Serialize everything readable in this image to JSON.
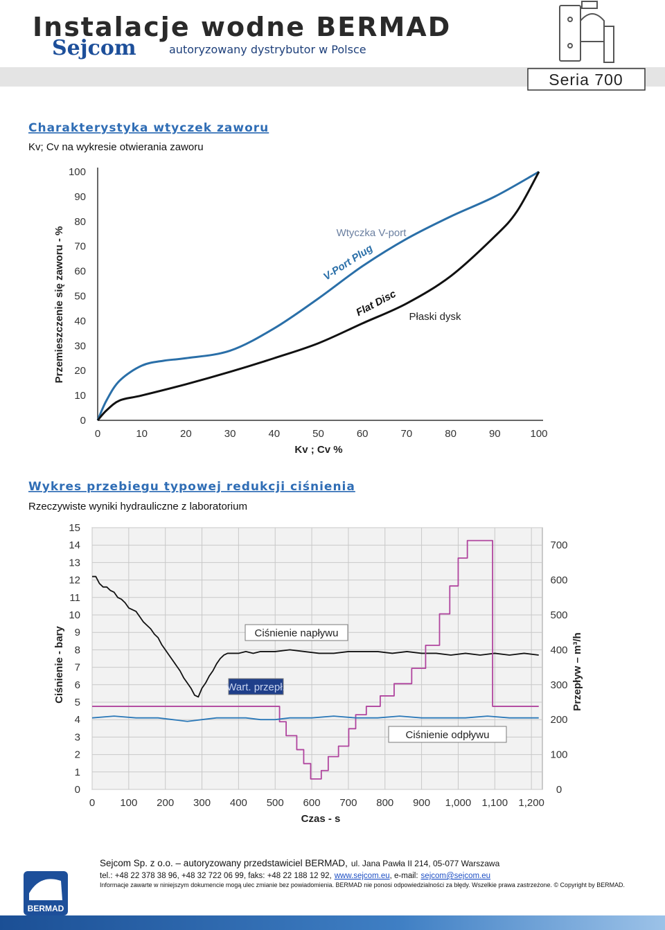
{
  "header": {
    "title": "Instalacje wodne BERMAD",
    "brand": "Sejcom",
    "tagline": "autoryzowany dystrybutor w Polsce",
    "series": "Seria 700"
  },
  "chart_data": [
    {
      "type": "line",
      "title": "Charakterystyka wtyczek zaworu",
      "subtitle": "Kv; Cv na wykresie otwierania zaworu",
      "x_label": "Kv ; Cv %",
      "y_label": "Przemieszczenie się zaworu - %",
      "xlim": [
        0,
        100
      ],
      "ylim": [
        0,
        100
      ],
      "xticks": [
        0,
        10,
        20,
        30,
        40,
        50,
        60,
        70,
        80,
        90,
        100
      ],
      "yticks": [
        0,
        10,
        20,
        30,
        40,
        50,
        60,
        70,
        80,
        90,
        100
      ],
      "grid": false,
      "smooth": true,
      "series": [
        {
          "name": "V-Port Plug",
          "color": "#2a6fa8",
          "x": [
            0,
            2,
            5,
            10,
            15,
            20,
            30,
            40,
            50,
            60,
            70,
            80,
            90,
            100
          ],
          "values": [
            0,
            8,
            16,
            22,
            24,
            25,
            28,
            37,
            49,
            62,
            73,
            82,
            90,
            100
          ]
        },
        {
          "name": "Flat Disc",
          "color": "#111111",
          "x": [
            0,
            2,
            5,
            10,
            20,
            30,
            40,
            50,
            60,
            70,
            80,
            90,
            95,
            100
          ],
          "values": [
            0,
            4,
            8,
            10,
            14.5,
            19.5,
            25,
            31,
            39,
            47,
            58,
            74,
            84,
            100
          ]
        }
      ],
      "annotations": [
        "Wtyczka V-port",
        "Płaski dysk"
      ]
    },
    {
      "type": "line",
      "title": "Wykres przebiegu typowej redukcji ciśnienia",
      "subtitle": "Rzeczywiste wyniki hydrauliczne z laboratorium",
      "x_label": "Czas - s",
      "y_label": "Ciśnienie - bary",
      "y2_label": "Przepływ – m³/h",
      "xlim": [
        0,
        1230
      ],
      "ylim": [
        0,
        15
      ],
      "y2lim": [
        0,
        750
      ],
      "xticks": [
        0,
        100,
        200,
        300,
        400,
        500,
        600,
        700,
        800,
        900,
        {
          "value": 1000,
          "label": "1,000"
        },
        {
          "value": 1100,
          "label": "1,100"
        },
        {
          "value": 1200,
          "label": "1,200"
        }
      ],
      "yticks": [
        0,
        1,
        2,
        3,
        4,
        5,
        6,
        7,
        8,
        9,
        10,
        11,
        12,
        13,
        14,
        15
      ],
      "y2ticks": [
        0,
        100,
        200,
        300,
        400,
        500,
        600,
        700
      ],
      "grid": true,
      "smooth": false,
      "series": [
        {
          "name": "Ciśnienie napływu",
          "color": "#111111",
          "x": [
            0,
            10,
            20,
            30,
            40,
            50,
            60,
            70,
            80,
            90,
            100,
            110,
            120,
            130,
            140,
            150,
            160,
            170,
            180,
            190,
            200,
            210,
            220,
            230,
            240,
            250,
            260,
            270,
            280,
            290,
            300,
            310,
            320,
            330,
            340,
            350,
            360,
            370,
            380,
            400,
            420,
            440,
            460,
            480,
            500,
            540,
            580,
            620,
            660,
            700,
            740,
            780,
            820,
            860,
            900,
            940,
            980,
            1020,
            1060,
            1100,
            1140,
            1180,
            1220
          ],
          "values": [
            12.2,
            12.2,
            11.8,
            11.6,
            11.6,
            11.4,
            11.3,
            11.0,
            10.9,
            10.7,
            10.4,
            10.3,
            10.2,
            9.9,
            9.6,
            9.4,
            9.2,
            8.9,
            8.7,
            8.3,
            8.0,
            7.7,
            7.4,
            7.1,
            6.8,
            6.4,
            6.1,
            5.8,
            5.4,
            5.3,
            5.8,
            6.1,
            6.5,
            6.8,
            7.2,
            7.5,
            7.7,
            7.8,
            7.8,
            7.8,
            7.9,
            7.8,
            7.9,
            7.9,
            7.9,
            8.0,
            7.9,
            7.8,
            7.8,
            7.9,
            7.9,
            7.9,
            7.8,
            7.9,
            7.8,
            7.8,
            7.7,
            7.8,
            7.7,
            7.8,
            7.7,
            7.8,
            7.7
          ]
        },
        {
          "name": "Wart. przepł.",
          "color": "#b0449e",
          "axis": "y2",
          "x": [
            0,
            512,
            512,
            530,
            530,
            559,
            559,
            578,
            578,
            597,
            597,
            626,
            626,
            645,
            645,
            673,
            673,
            701,
            701,
            720,
            720,
            749,
            749,
            787,
            787,
            825,
            825,
            873,
            873,
            911,
            911,
            949,
            949,
            977,
            977,
            1000,
            1000,
            1025,
            1025,
            1094,
            1094,
            1220
          ],
          "values": [
            238,
            238,
            194,
            194,
            154,
            154,
            114,
            114,
            74,
            74,
            30,
            30,
            54,
            54,
            94,
            94,
            124,
            124,
            174,
            174,
            214,
            214,
            238,
            238,
            268,
            268,
            303,
            303,
            347,
            347,
            413,
            413,
            503,
            503,
            583,
            583,
            663,
            663,
            713,
            713,
            238,
            238
          ]
        },
        {
          "name": "Ciśnienie odpływu",
          "color": "#2a78b8",
          "x": [
            0,
            60,
            120,
            180,
            220,
            260,
            300,
            340,
            380,
            420,
            460,
            500,
            540,
            600,
            660,
            720,
            780,
            840,
            900,
            960,
            1020,
            1080,
            1140,
            1200,
            1220
          ],
          "values": [
            4.1,
            4.2,
            4.1,
            4.1,
            4.0,
            3.9,
            4.0,
            4.1,
            4.1,
            4.1,
            4.0,
            4.0,
            4.1,
            4.1,
            4.2,
            4.1,
            4.1,
            4.2,
            4.1,
            4.1,
            4.1,
            4.2,
            4.1,
            4.1,
            4.1
          ]
        }
      ]
    }
  ],
  "footer": {
    "company": "Sejcom Sp. z o.o. – autoryzowany przedstawiciel BERMAD,",
    "address": "ul. Jana Pawła II 214, 05-077 Warszawa",
    "contact": "tel.: +48 22 378 38 96, +48 32 722 06 99, faks: +48 22 188 12 92,",
    "website": "www.sejcom.eu",
    "email_label": ", e-mail:",
    "email": "sejcom@sejcom.eu",
    "disclaimer": "Informacje zawarte w niniejszym dokumencie mogą ulec zmianie bez powiadomienia. BERMAD nie ponosi odpowiedzialności za błędy. Wszelkie prawa zastrzeżone. © Copyright by BERMAD.",
    "logo": "BERMAD"
  }
}
